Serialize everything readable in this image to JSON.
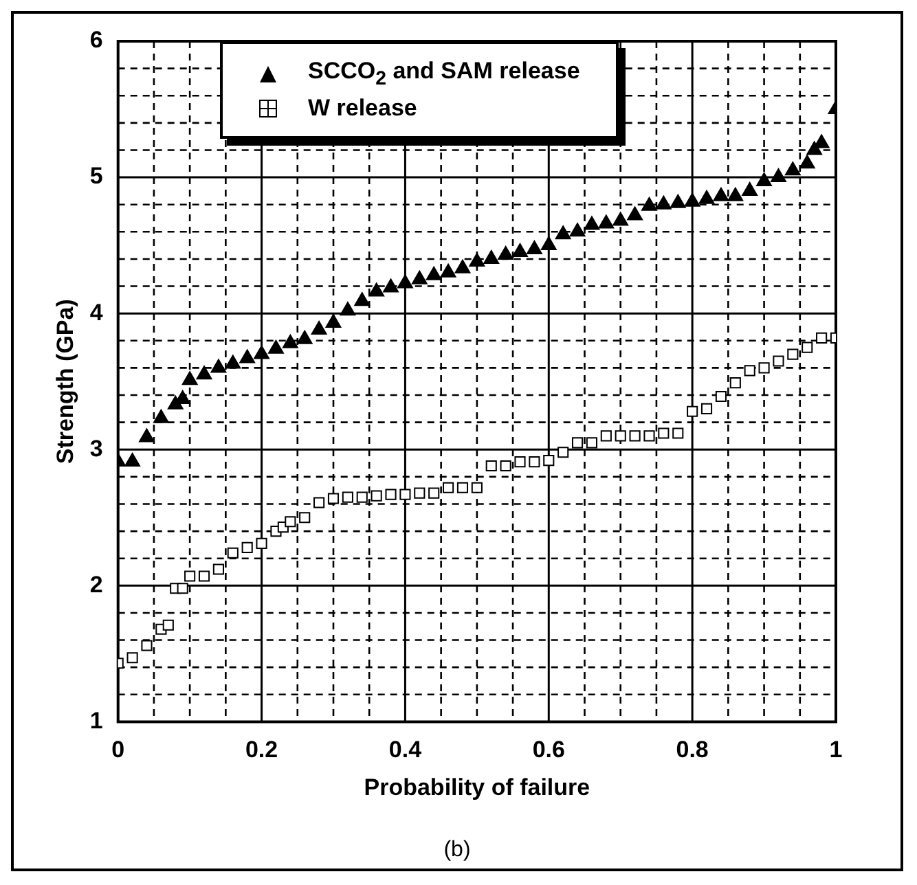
{
  "chart_data": {
    "type": "scatter",
    "xlabel": "Probability of failure",
    "ylabel": "Strength (GPa)",
    "xlim": [
      0,
      1
    ],
    "ylim": [
      1,
      6
    ],
    "xticks": [
      0,
      {
        "value": 0.05,
        "label": null
      },
      {
        "value": 0.1,
        "label": null
      },
      {
        "value": 0.15,
        "label": null
      },
      0.2,
      {
        "value": 0.25,
        "label": null
      },
      {
        "value": 0.3,
        "label": null
      },
      {
        "value": 0.35,
        "label": null
      },
      0.4,
      {
        "value": 0.45,
        "label": null
      },
      {
        "value": 0.5,
        "label": null
      },
      {
        "value": 0.55,
        "label": null
      },
      0.6,
      {
        "value": 0.65,
        "label": null
      },
      {
        "value": 0.7,
        "label": null
      },
      {
        "value": 0.75,
        "label": null
      },
      0.8,
      {
        "value": 0.85,
        "label": null
      },
      {
        "value": 0.9,
        "label": null
      },
      {
        "value": 0.95,
        "label": null
      },
      1
    ],
    "yticks": [
      1,
      {
        "value": 1.2,
        "label": null
      },
      {
        "value": 1.4,
        "label": null
      },
      {
        "value": 1.6,
        "label": null
      },
      {
        "value": 1.8,
        "label": null
      },
      2,
      {
        "value": 2.2,
        "label": null
      },
      {
        "value": 2.4,
        "label": null
      },
      {
        "value": 2.6,
        "label": null
      },
      {
        "value": 2.8,
        "label": null
      },
      3,
      {
        "value": 3.2,
        "label": null
      },
      {
        "value": 3.4,
        "label": null
      },
      {
        "value": 3.6,
        "label": null
      },
      {
        "value": 3.8,
        "label": null
      },
      4,
      {
        "value": 4.2,
        "label": null
      },
      {
        "value": 4.4,
        "label": null
      },
      {
        "value": 4.6,
        "label": null
      },
      {
        "value": 4.8,
        "label": null
      },
      5,
      {
        "value": 5.2,
        "label": null
      },
      {
        "value": 5.4,
        "label": null
      },
      {
        "value": 5.6,
        "label": null
      },
      {
        "value": 5.8,
        "label": null
      },
      6
    ],
    "grid": true,
    "legend": "top",
    "annotations": [
      "(b)"
    ],
    "series": [
      {
        "name": "SCCO$_{2}$ and SAM release",
        "color": "#000000",
        "marker": "triangle",
        "x": [
          0,
          0.02,
          0.04,
          0.06,
          0.08,
          0.09,
          0.1,
          0.12,
          0.14,
          0.16,
          0.18,
          0.2,
          0.22,
          0.24,
          0.26,
          0.28,
          0.3,
          0.32,
          0.34,
          0.36,
          0.38,
          0.4,
          0.42,
          0.44,
          0.46,
          0.48,
          0.5,
          0.52,
          0.54,
          0.56,
          0.58,
          0.6,
          0.62,
          0.64,
          0.66,
          0.68,
          0.7,
          0.72,
          0.74,
          0.76,
          0.78,
          0.8,
          0.82,
          0.84,
          0.86,
          0.88,
          0.9,
          0.92,
          0.94,
          0.96,
          0.97,
          0.98,
          1
        ],
        "values": [
          2.91,
          2.91,
          3.09,
          3.23,
          3.33,
          3.37,
          3.51,
          3.55,
          3.6,
          3.63,
          3.67,
          3.7,
          3.74,
          3.78,
          3.81,
          3.88,
          3.93,
          4.02,
          4.09,
          4.16,
          4.19,
          4.22,
          4.25,
          4.28,
          4.3,
          4.33,
          4.38,
          4.4,
          4.43,
          4.45,
          4.47,
          4.5,
          4.58,
          4.6,
          4.65,
          4.66,
          4.68,
          4.72,
          4.79,
          4.8,
          4.81,
          4.82,
          4.84,
          4.86,
          4.86,
          4.9,
          4.97,
          5.0,
          5.05,
          5.1,
          5.2,
          5.25,
          5.5
        ]
      },
      {
        "name": "W release",
        "color": "#000000",
        "marker": "square",
        "x": [
          0,
          0.02,
          0.04,
          0.06,
          0.07,
          0.08,
          0.09,
          0.1,
          0.12,
          0.14,
          0.16,
          0.18,
          0.2,
          0.22,
          0.23,
          0.24,
          0.26,
          0.28,
          0.3,
          0.32,
          0.34,
          0.36,
          0.38,
          0.4,
          0.42,
          0.44,
          0.46,
          0.48,
          0.5,
          0.52,
          0.54,
          0.56,
          0.58,
          0.6,
          0.62,
          0.64,
          0.66,
          0.68,
          0.7,
          0.72,
          0.74,
          0.76,
          0.78,
          0.8,
          0.82,
          0.84,
          0.86,
          0.88,
          0.9,
          0.92,
          0.94,
          0.96,
          0.98,
          1
        ],
        "values": [
          1.43,
          1.47,
          1.56,
          1.68,
          1.71,
          1.98,
          1.98,
          2.07,
          2.07,
          2.12,
          2.24,
          2.28,
          2.31,
          2.4,
          2.43,
          2.47,
          2.5,
          2.61,
          2.64,
          2.65,
          2.65,
          2.66,
          2.67,
          2.67,
          2.68,
          2.68,
          2.72,
          2.72,
          2.72,
          2.88,
          2.88,
          2.91,
          2.91,
          2.92,
          2.98,
          3.05,
          3.05,
          3.1,
          3.1,
          3.1,
          3.1,
          3.12,
          3.12,
          3.28,
          3.3,
          3.39,
          3.49,
          3.58,
          3.6,
          3.65,
          3.7,
          3.75,
          3.82,
          3.82
        ]
      }
    ]
  }
}
